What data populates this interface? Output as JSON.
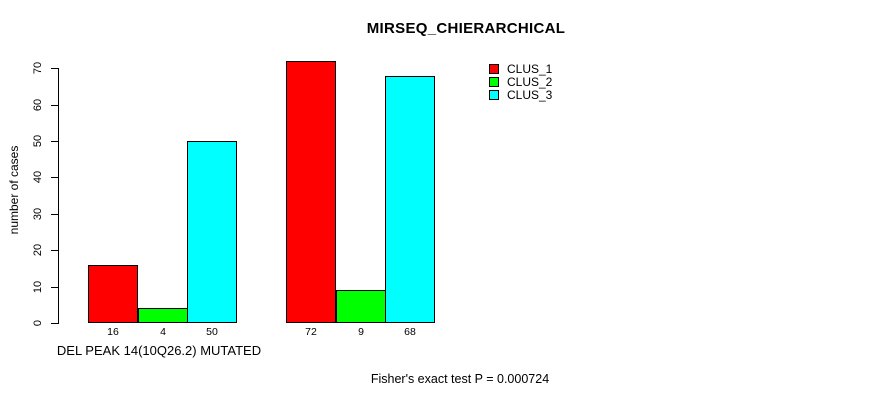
{
  "chart_data": {
    "type": "bar",
    "title": "MIRSEQ_CHIERARCHICAL",
    "ylabel": "number of cases",
    "xlabel": "DEL PEAK 14(10Q26.2) MUTATED",
    "annotation": "Fisher's exact test P = 0.000724",
    "ylim": [
      0,
      70
    ],
    "yticks": [
      0,
      10,
      20,
      30,
      40,
      50,
      60,
      70
    ],
    "grid": false,
    "legend_position": "top-right",
    "background_color": "#ffffff",
    "axis_color": "#000000",
    "series": [
      {
        "name": "CLUS_1",
        "color": "#ff0000",
        "values": [
          16,
          72
        ]
      },
      {
        "name": "CLUS_2",
        "color": "#00ff00",
        "values": [
          4,
          9
        ]
      },
      {
        "name": "CLUS_3",
        "color": "#00ffff",
        "values": [
          50,
          68
        ]
      }
    ],
    "bar_value_labels": [
      [
        16,
        4,
        50
      ],
      [
        72,
        9,
        68
      ]
    ]
  }
}
